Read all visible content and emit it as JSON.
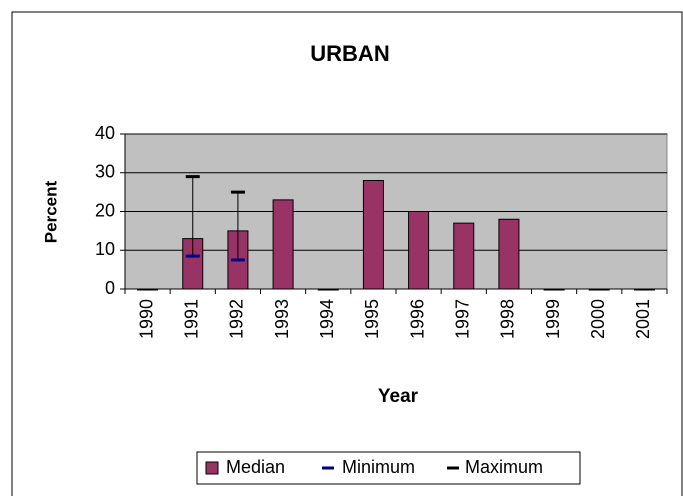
{
  "chart_data": {
    "type": "bar",
    "title": "URBAN",
    "x_label": "Year",
    "y_label": "Percent",
    "categories": [
      "1990",
      "1991",
      "1992",
      "1993",
      "1994",
      "1995",
      "1996",
      "1997",
      "1998",
      "1999",
      "2000",
      "2001"
    ],
    "series": [
      {
        "name": "Median",
        "color": "#993366",
        "values": [
          0,
          13,
          15,
          23,
          0,
          28,
          20,
          17,
          18,
          0,
          0,
          0
        ]
      },
      {
        "name": "Minimum",
        "color": "#000080",
        "values": [
          null,
          8.5,
          7.5,
          null,
          null,
          null,
          null,
          null,
          null,
          null,
          null,
          null
        ]
      },
      {
        "name": "Maximum",
        "color": "#000000",
        "values": [
          null,
          29,
          25,
          null,
          null,
          null,
          null,
          null,
          null,
          null,
          null,
          null
        ]
      }
    ],
    "ylim": [
      0,
      40
    ],
    "yticks": [
      0,
      10,
      20,
      30,
      40
    ],
    "grid": true,
    "legend": "bottom"
  }
}
